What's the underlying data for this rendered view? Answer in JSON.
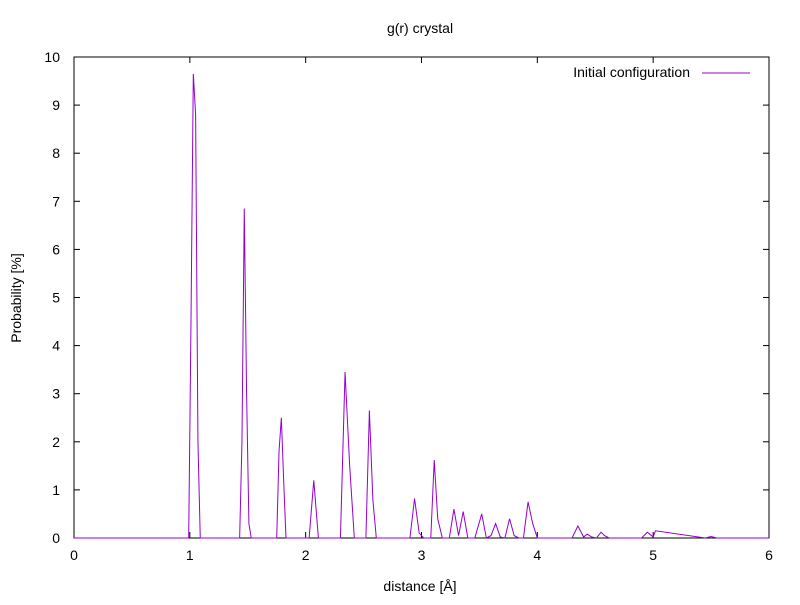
{
  "chart_data": {
    "type": "line",
    "title": "g(r) crystal",
    "xlabel": "distance [Å]",
    "ylabel": "Probability [%]",
    "xlim": [
      0,
      6
    ],
    "ylim": [
      0,
      10
    ],
    "x_ticks": [
      0,
      1,
      2,
      3,
      4,
      5,
      6
    ],
    "y_ticks": [
      0,
      1,
      2,
      3,
      4,
      5,
      6,
      7,
      8,
      9,
      10
    ],
    "grid": false,
    "legend_position": "top-right",
    "series": [
      {
        "name": "Initial configuration",
        "color": "#9400d3",
        "x": [
          0,
          0.99,
          1.01,
          1.03,
          1.05,
          1.07,
          1.09,
          1.11,
          1.43,
          1.45,
          1.47,
          1.49,
          1.51,
          1.53,
          1.55,
          1.75,
          1.77,
          1.79,
          1.81,
          1.83,
          1.85,
          2.03,
          2.07,
          2.11,
          2.15,
          2.3,
          2.34,
          2.38,
          2.42,
          2.52,
          2.55,
          2.58,
          2.61,
          2.65,
          2.9,
          2.94,
          2.98,
          3.02,
          3.08,
          3.11,
          3.14,
          3.18,
          3.24,
          3.28,
          3.32,
          3.36,
          3.4,
          3.46,
          3.52,
          3.56,
          3.6,
          3.64,
          3.68,
          3.72,
          3.76,
          3.8,
          3.84,
          3.88,
          3.92,
          3.96,
          4.0,
          4.3,
          4.35,
          4.4,
          4.43,
          4.47,
          4.51,
          4.55,
          4.58,
          4.62,
          4.9,
          4.95,
          5.0,
          5.02,
          5.45,
          5.5,
          5.55,
          6
        ],
        "y": [
          0,
          0,
          4.5,
          9.65,
          8.8,
          2.0,
          0,
          0,
          0,
          2.0,
          6.85,
          3.0,
          0.3,
          0,
          0,
          0,
          1.8,
          2.5,
          1.2,
          0,
          0,
          0,
          1.2,
          0,
          0,
          0,
          3.45,
          1.5,
          0,
          0,
          2.65,
          0.8,
          0,
          0,
          0,
          0.82,
          0.1,
          0,
          0,
          1.62,
          0.4,
          0,
          0,
          0.6,
          0.05,
          0.55,
          0,
          0,
          0.5,
          0,
          0.05,
          0.3,
          0.02,
          0,
          0.4,
          0.05,
          0,
          0,
          0.75,
          0.3,
          0,
          0,
          0.25,
          0.02,
          0.08,
          0.02,
          0,
          0.12,
          0.05,
          0,
          0,
          0.12,
          0.02,
          0.15,
          0,
          0.03,
          0,
          0
        ]
      }
    ]
  }
}
